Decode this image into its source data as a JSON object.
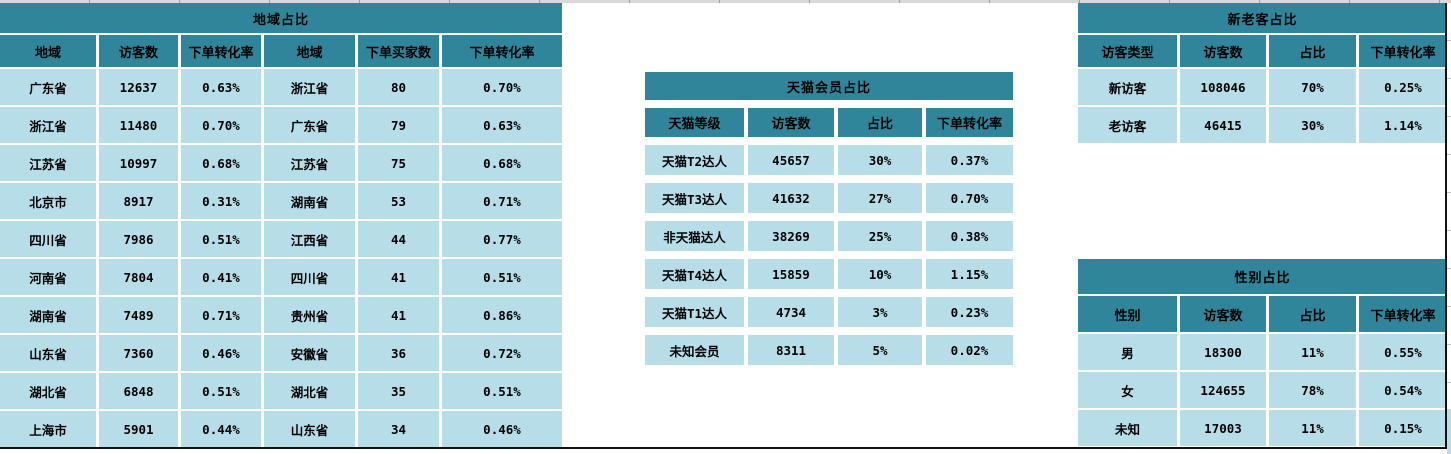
{
  "colors": {
    "teal": "#31859B",
    "light_blue": "#B7DEE8",
    "strip_bg": "#D9D9D9",
    "gridline": "#9E9E9E",
    "print_border": "#111111"
  },
  "region_table": {
    "title": "地域占比",
    "headers": [
      "地域",
      "访客数",
      "下单转化率",
      "地域",
      "下单买家数",
      "下单转化率"
    ],
    "rows": [
      [
        "广东省",
        "12637",
        "0.63%",
        "浙江省",
        "80",
        "0.70%"
      ],
      [
        "浙江省",
        "11480",
        "0.70%",
        "广东省",
        "79",
        "0.63%"
      ],
      [
        "江苏省",
        "10997",
        "0.68%",
        "江苏省",
        "75",
        "0.68%"
      ],
      [
        "北京市",
        "8917",
        "0.31%",
        "湖南省",
        "53",
        "0.71%"
      ],
      [
        "四川省",
        "7986",
        "0.51%",
        "江西省",
        "44",
        "0.77%"
      ],
      [
        "河南省",
        "7804",
        "0.41%",
        "四川省",
        "41",
        "0.51%"
      ],
      [
        "湖南省",
        "7489",
        "0.71%",
        "贵州省",
        "41",
        "0.86%"
      ],
      [
        "山东省",
        "7360",
        "0.46%",
        "安徽省",
        "36",
        "0.72%"
      ],
      [
        "湖北省",
        "6848",
        "0.51%",
        "湖北省",
        "35",
        "0.51%"
      ],
      [
        "上海市",
        "5901",
        "0.44%",
        "山东省",
        "34",
        "0.46%"
      ]
    ]
  },
  "tmall_table": {
    "title": "天猫会员占比",
    "headers": [
      "天猫等级",
      "访客数",
      "占比",
      "下单转化率"
    ],
    "rows": [
      [
        "天猫T2达人",
        "45657",
        "30%",
        "0.37%"
      ],
      [
        "天猫T3达人",
        "41632",
        "27%",
        "0.70%"
      ],
      [
        "非天猫达人",
        "38269",
        "25%",
        "0.38%"
      ],
      [
        "天猫T4达人",
        "15859",
        "10%",
        "1.15%"
      ],
      [
        "天猫T1达人",
        "4734",
        "3%",
        "0.23%"
      ],
      [
        "未知会员",
        "8311",
        "5%",
        "0.02%"
      ]
    ]
  },
  "visitor_table": {
    "title": "新老客占比",
    "headers": [
      "访客类型",
      "访客数",
      "占比",
      "下单转化率"
    ],
    "rows": [
      [
        "新访客",
        "108046",
        "70%",
        "0.25%"
      ],
      [
        "老访客",
        "46415",
        "30%",
        "1.14%"
      ]
    ]
  },
  "gender_table": {
    "title": "性别占比",
    "headers": [
      "性别",
      "访客数",
      "占比",
      "下单转化率"
    ],
    "rows": [
      [
        "男",
        "18300",
        "11%",
        "0.55%"
      ],
      [
        "女",
        "124655",
        "78%",
        "0.54%"
      ],
      [
        "未知",
        "17003",
        "11%",
        "0.15%"
      ]
    ]
  }
}
